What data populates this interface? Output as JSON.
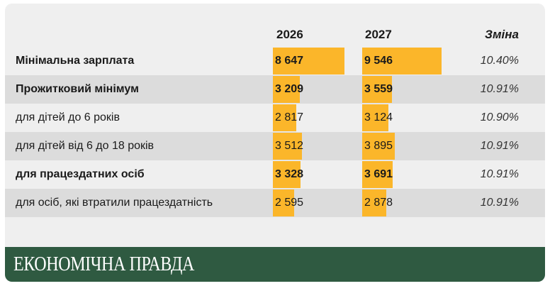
{
  "brand": {
    "name": "ЕКОНОМІЧНА ПРАВДА"
  },
  "colors": {
    "bar": "#fbb62a",
    "footer": "#2f5a41",
    "background": "#efefef",
    "stripe": "#dcdcdc"
  },
  "headers": {
    "year1": "2026",
    "year2": "2027",
    "change": "Зміна"
  },
  "chart_data": {
    "type": "table",
    "columns": [
      "2026",
      "2027",
      "Зміна"
    ],
    "rows": [
      {
        "label": "Мінімальна зарплата",
        "y2026": "8 647",
        "y2027": "9 546",
        "v2026": 8647,
        "v2027": 9546,
        "change": "10.40%",
        "bold": true
      },
      {
        "label": "Прожитковий мінімум",
        "y2026": "3 209",
        "y2027": "3 559",
        "v2026": 3209,
        "v2027": 3559,
        "change": "10.91%",
        "bold": true
      },
      {
        "label": "для дітей до 6 років",
        "y2026": "2 817",
        "y2027": "3 124",
        "v2026": 2817,
        "v2027": 3124,
        "change": "10.90%",
        "bold": false
      },
      {
        "label": "для дітей від 6 до 18 років",
        "y2026": "3 512",
        "y2027": "3 895",
        "v2026": 3512,
        "v2027": 3895,
        "change": "10.91%",
        "bold": false
      },
      {
        "label": "для працездатних осіб",
        "y2026": "3 328",
        "y2027": "3 691",
        "v2026": 3328,
        "v2027": 3691,
        "change": "10.91%",
        "bold": true
      },
      {
        "label": "для осіб, які втратили працездатність",
        "y2026": "2 595",
        "y2027": "2 878",
        "v2026": 2595,
        "v2027": 2878,
        "change": "10.91%",
        "bold": false
      }
    ],
    "bar_max": 9546
  }
}
